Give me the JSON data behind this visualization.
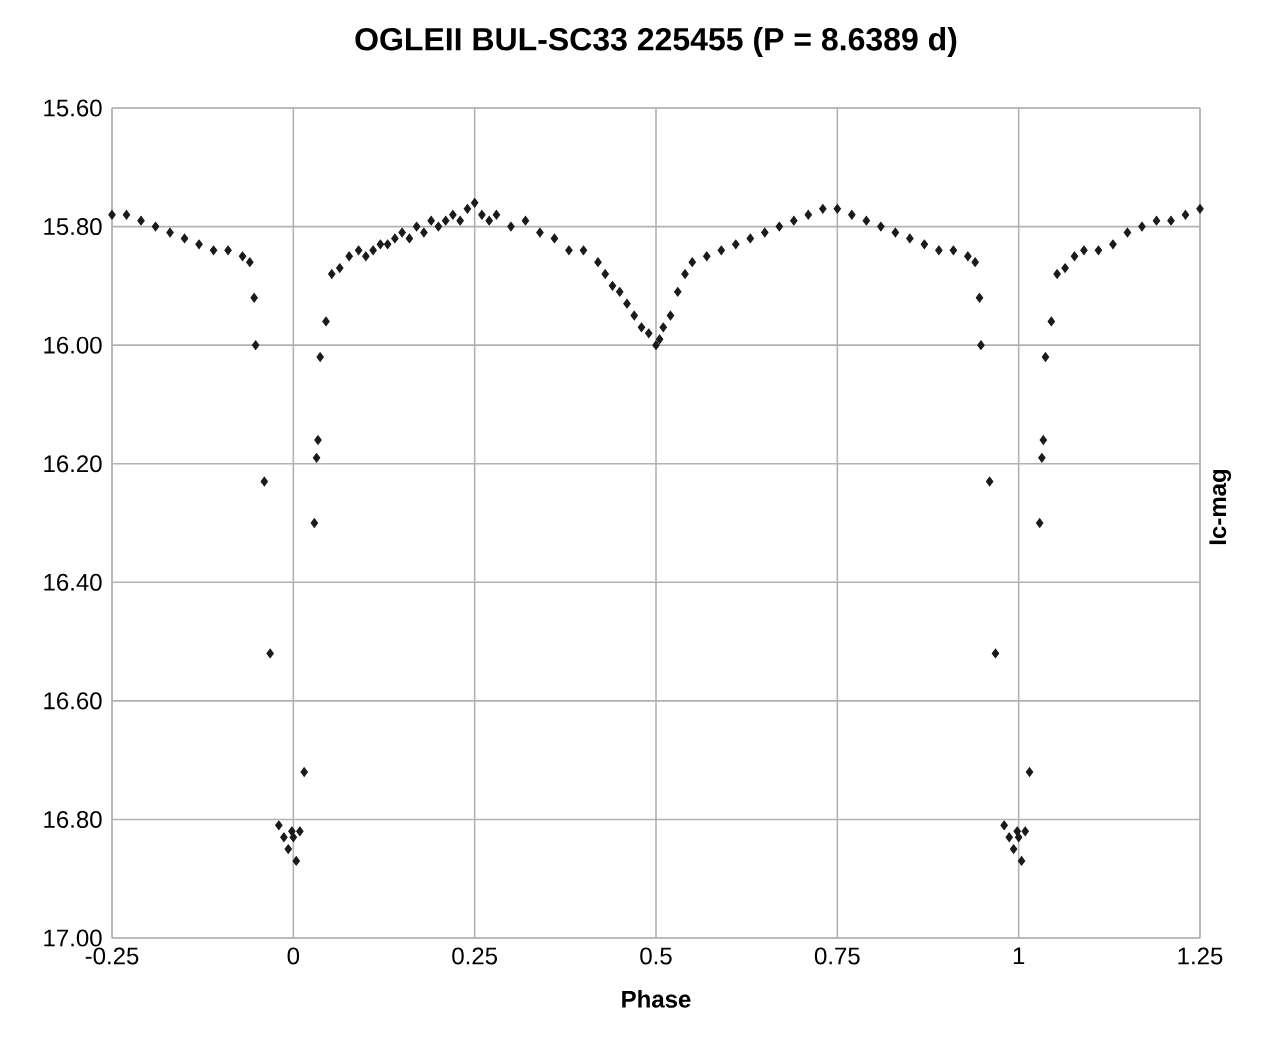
{
  "chart_data": {
    "type": "scatter",
    "title": "OGLEII BUL-SC33 225455 (P = 8.6389 d)",
    "xlabel": "Phase",
    "ylabel": "Ic-mag",
    "xlim": [
      -0.25,
      1.25
    ],
    "xticks": [
      -0.25,
      0,
      0.25,
      0.5,
      0.75,
      1,
      1.25
    ],
    "ylim": [
      17.0,
      15.6
    ],
    "yticks": [
      {
        "value": 15.6,
        "label": "15.60"
      },
      {
        "value": 15.8,
        "label": "15.80"
      },
      {
        "value": 16.0,
        "label": "16.00"
      },
      {
        "value": 16.2,
        "label": "16.20"
      },
      {
        "value": 16.4,
        "label": "16.40"
      },
      {
        "value": 16.6,
        "label": "16.60"
      },
      {
        "value": 16.8,
        "label": "16.80"
      },
      {
        "value": 17.0,
        "label": "17.00"
      }
    ],
    "grid": true,
    "marker": "diamond",
    "series": [
      {
        "color": "#1a1a1a",
        "x": [
          -0.25,
          -0.23,
          -0.21,
          -0.19,
          -0.17,
          -0.15,
          -0.13,
          -0.11,
          -0.09,
          -0.07,
          -0.06,
          -0.054,
          -0.052,
          -0.04,
          -0.032,
          -0.02,
          -0.013,
          -0.007,
          -0.002,
          0.0,
          0.004,
          0.009,
          0.015,
          0.029,
          0.032,
          0.034,
          0.037,
          0.045,
          0.053,
          0.064,
          0.077,
          0.09,
          0.1,
          0.11,
          0.12,
          0.13,
          0.14,
          0.15,
          0.16,
          0.17,
          0.18,
          0.19,
          0.2,
          0.21,
          0.22,
          0.23,
          0.24,
          0.25,
          0.26,
          0.27,
          0.28,
          0.3,
          0.32,
          0.34,
          0.36,
          0.38,
          0.4,
          0.42,
          0.43,
          0.44,
          0.45,
          0.46,
          0.47,
          0.48,
          0.49,
          0.5,
          0.505,
          0.51,
          0.52,
          0.53,
          0.54,
          0.55,
          0.57,
          0.59,
          0.61,
          0.63,
          0.65,
          0.67,
          0.69,
          0.71,
          0.73,
          0.75,
          0.77,
          0.79,
          0.81,
          0.83,
          0.85,
          0.87,
          0.89,
          0.91,
          0.93,
          0.94,
          0.946,
          0.948,
          0.96,
          0.968,
          0.98,
          0.987,
          0.993,
          0.998,
          1.0,
          1.004,
          1.009,
          1.015,
          1.029,
          1.032,
          1.034,
          1.037,
          1.045,
          1.053,
          1.064,
          1.077,
          1.09,
          1.11,
          1.13,
          1.15,
          1.17,
          1.19,
          1.21,
          1.23,
          1.25
        ],
        "values": [
          15.78,
          15.78,
          15.79,
          15.8,
          15.81,
          15.82,
          15.83,
          15.84,
          15.84,
          15.85,
          15.86,
          15.92,
          16.0,
          16.23,
          16.52,
          16.81,
          16.83,
          16.85,
          16.82,
          16.83,
          16.87,
          16.82,
          16.72,
          16.3,
          16.19,
          16.16,
          16.02,
          15.96,
          15.88,
          15.87,
          15.85,
          15.84,
          15.85,
          15.84,
          15.83,
          15.83,
          15.82,
          15.81,
          15.82,
          15.8,
          15.81,
          15.79,
          15.8,
          15.79,
          15.78,
          15.79,
          15.77,
          15.76,
          15.78,
          15.79,
          15.78,
          15.8,
          15.79,
          15.81,
          15.82,
          15.84,
          15.84,
          15.86,
          15.88,
          15.9,
          15.91,
          15.93,
          15.95,
          15.97,
          15.98,
          16.0,
          15.99,
          15.97,
          15.95,
          15.91,
          15.88,
          15.86,
          15.85,
          15.84,
          15.83,
          15.82,
          15.81,
          15.8,
          15.79,
          15.78,
          15.77,
          15.77,
          15.78,
          15.79,
          15.8,
          15.81,
          15.82,
          15.83,
          15.84,
          15.84,
          15.85,
          15.86,
          15.92,
          16.0,
          16.23,
          16.52,
          16.81,
          16.83,
          16.85,
          16.82,
          16.83,
          16.87,
          16.82,
          16.72,
          16.3,
          16.19,
          16.16,
          16.02,
          15.96,
          15.88,
          15.87,
          15.85,
          15.84,
          15.84,
          15.83,
          15.81,
          15.8,
          15.79,
          15.79,
          15.78,
          15.77
        ]
      }
    ]
  }
}
